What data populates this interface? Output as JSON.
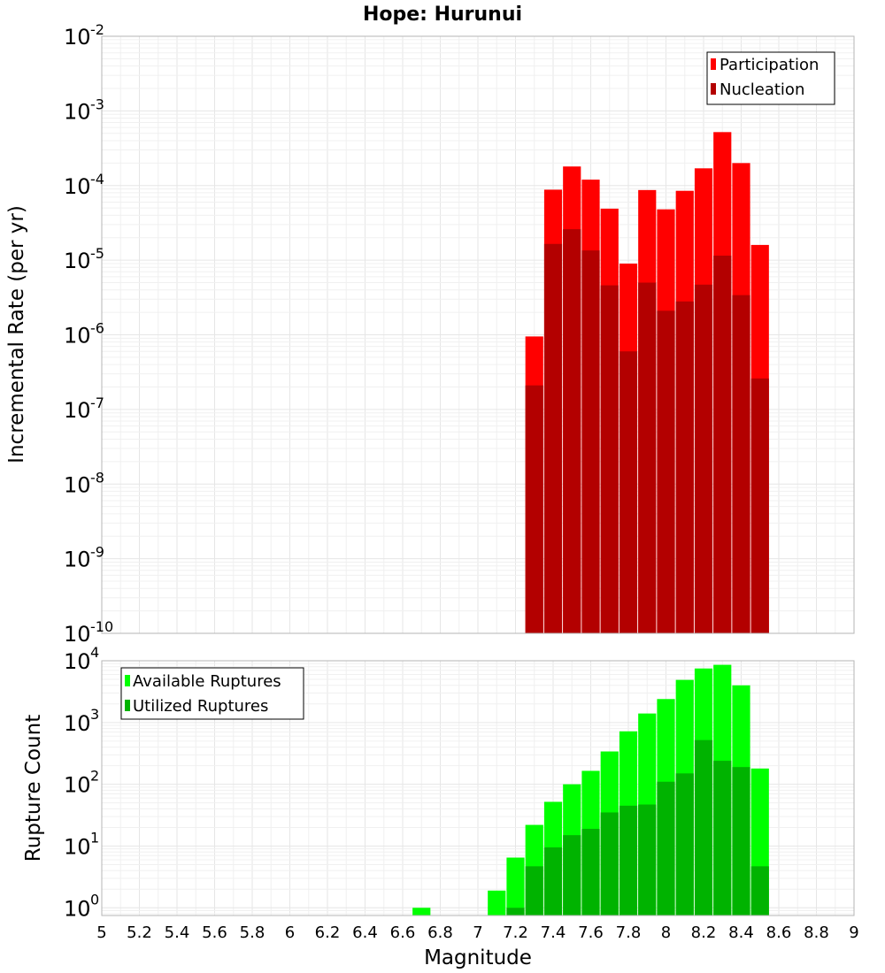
{
  "chart_data": [
    {
      "type": "bar",
      "title": "Hope: Hurunui",
      "ylabel": "Incremental Rate (per yr)",
      "xlabel": "",
      "xlim": [
        5,
        9
      ],
      "ylim": [
        1e-10,
        0.01
      ],
      "yscale": "log",
      "y_tick_exponents": [
        "-2",
        "-3",
        "-4",
        "-5",
        "-6",
        "-7",
        "-8",
        "-9",
        "-10"
      ],
      "grid": true,
      "legend_position": "top-right",
      "x": [
        7.3,
        7.4,
        7.5,
        7.6,
        7.7,
        7.8,
        7.9,
        8.0,
        8.1,
        8.2,
        8.3,
        8.4,
        8.5
      ],
      "series": [
        {
          "name": "Participation",
          "color": "#ff0000",
          "values": [
            9.5e-07,
            8.8e-05,
            0.00018,
            0.00012,
            4.9e-05,
            9e-06,
            8.7e-05,
            4.8e-05,
            8.5e-05,
            0.00017,
            0.00052,
            0.0002,
            1.6e-05
          ]
        },
        {
          "name": "Nucleation",
          "color": "#b30000",
          "values": [
            2.1e-07,
            1.65e-05,
            2.6e-05,
            1.35e-05,
            4.6e-06,
            6e-07,
            5e-06,
            2.1e-06,
            2.8e-06,
            4.7e-06,
            1.15e-05,
            3.4e-06,
            2.6e-07
          ]
        }
      ]
    },
    {
      "type": "bar",
      "title": "",
      "ylabel": "Rupture Count",
      "xlabel": "Magnitude",
      "xlim": [
        5,
        9
      ],
      "ylim": [
        0.75,
        10000
      ],
      "yscale": "log",
      "y_tick_exponents": [
        "4",
        "3",
        "2",
        "1",
        "0"
      ],
      "x_ticks": [
        "5",
        "5.2",
        "5.4",
        "5.6",
        "5.8",
        "6",
        "6.2",
        "6.4",
        "6.6",
        "6.8",
        "7",
        "7.2",
        "7.4",
        "7.6",
        "7.8",
        "8",
        "8.2",
        "8.4",
        "8.6",
        "8.8",
        "9"
      ],
      "grid": true,
      "legend_position": "top-left",
      "series": [
        {
          "name": "Available Ruptures",
          "color": "#00ff00",
          "x": [
            6.7,
            7.1,
            7.2,
            7.3,
            7.4,
            7.5,
            7.6,
            7.7,
            7.8,
            7.9,
            8.0,
            8.1,
            8.2,
            8.3,
            8.4,
            8.5
          ],
          "values": [
            1,
            1.9,
            6.5,
            22,
            52,
            100,
            165,
            340,
            720,
            1400,
            2400,
            4900,
            7500,
            8600,
            4000,
            180
          ]
        },
        {
          "name": "Utilized Ruptures",
          "color": "#00b300",
          "x": [
            7.2,
            7.3,
            7.4,
            7.5,
            7.6,
            7.7,
            7.8,
            7.9,
            8.0,
            8.1,
            8.2,
            8.3,
            8.4,
            8.5
          ],
          "values": [
            1,
            4.7,
            9.5,
            15,
            19,
            35,
            45,
            47,
            110,
            150,
            520,
            240,
            190,
            4.7
          ]
        }
      ]
    }
  ]
}
